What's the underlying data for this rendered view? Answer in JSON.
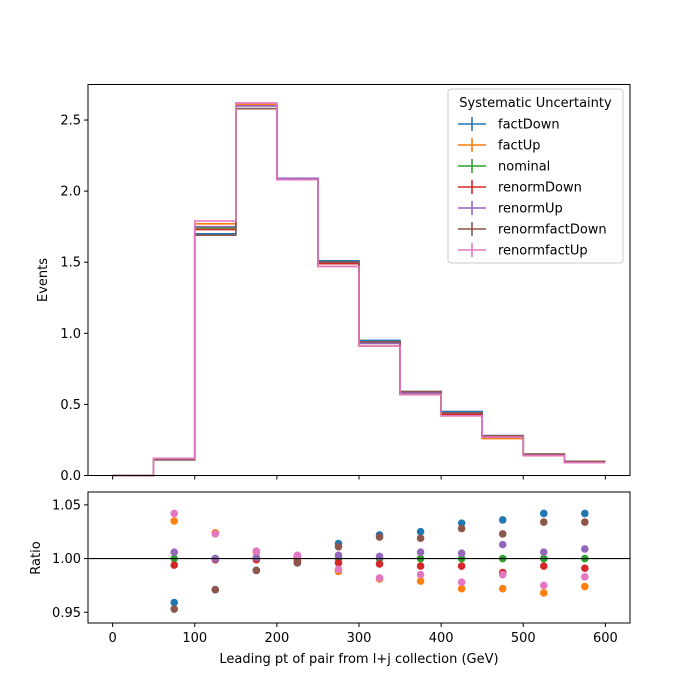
{
  "chart_data": [
    {
      "type": "line",
      "drawstyle": "steps",
      "panel": "main",
      "bin_edges": [
        0,
        50,
        100,
        150,
        200,
        250,
        300,
        350,
        400,
        450,
        500,
        550,
        600
      ],
      "xlim": [
        -30,
        630
      ],
      "ylim": [
        0,
        2.75
      ],
      "yticks": [
        0.0,
        0.5,
        1.0,
        1.5,
        2.0,
        2.5
      ],
      "ytick_labels": [
        "0.0",
        "0.5",
        "1.0",
        "1.5",
        "2.0",
        "2.5"
      ],
      "xticks": [
        0,
        100,
        200,
        300,
        400,
        500,
        600
      ],
      "ylabel": "Events",
      "legend": {
        "title": "Systematic Uncertainty",
        "placement": "top-right"
      },
      "series": [
        {
          "name": "factDown",
          "color": "#1f77b4",
          "values": [
            0.0,
            0.11,
            1.7,
            2.58,
            2.09,
            1.51,
            0.95,
            0.59,
            0.45,
            0.28,
            0.15,
            0.1
          ]
        },
        {
          "name": "factUp",
          "color": "#ff7f0e",
          "values": [
            0.0,
            0.12,
            1.77,
            2.61,
            2.08,
            1.47,
            0.91,
            0.57,
            0.42,
            0.26,
            0.14,
            0.09
          ]
        },
        {
          "name": "nominal",
          "color": "#2ca02c",
          "values": [
            0.0,
            0.12,
            1.74,
            2.6,
            2.09,
            1.49,
            0.93,
            0.58,
            0.43,
            0.27,
            0.15,
            0.09
          ]
        },
        {
          "name": "renormDown",
          "color": "#d62728",
          "values": [
            0.0,
            0.12,
            1.73,
            2.6,
            2.08,
            1.49,
            0.93,
            0.57,
            0.43,
            0.27,
            0.14,
            0.09
          ]
        },
        {
          "name": "renormUp",
          "color": "#9467bd",
          "values": [
            0.0,
            0.12,
            1.75,
            2.6,
            2.09,
            1.5,
            0.93,
            0.58,
            0.44,
            0.27,
            0.15,
            0.09
          ]
        },
        {
          "name": "renormfactDown",
          "color": "#8c564b",
          "values": [
            0.0,
            0.11,
            1.69,
            2.58,
            2.08,
            1.5,
            0.94,
            0.59,
            0.44,
            0.28,
            0.15,
            0.1
          ]
        },
        {
          "name": "renormfactUp",
          "color": "#e377c2",
          "values": [
            0.0,
            0.12,
            1.79,
            2.62,
            2.08,
            1.47,
            0.91,
            0.57,
            0.42,
            0.27,
            0.14,
            0.09
          ]
        }
      ]
    },
    {
      "type": "scatter",
      "panel": "ratio",
      "x": [
        75,
        125,
        175,
        225,
        275,
        325,
        375,
        425,
        475,
        525,
        575
      ],
      "xlim": [
        -30,
        630
      ],
      "ylim": [
        0.94,
        1.062
      ],
      "yticks": [
        0.95,
        1.0,
        1.05
      ],
      "ytick_labels": [
        "0.95",
        "1.00",
        "1.05"
      ],
      "xticks": [
        0,
        100,
        200,
        300,
        400,
        500,
        600
      ],
      "xtick_labels": [
        "0",
        "100",
        "200",
        "300",
        "400",
        "500",
        "600"
      ],
      "reference_line": 1.0,
      "xlabel": "Leading pt of pair from l+j collection (GeV)",
      "ylabel": "Ratio",
      "series": [
        {
          "name": "factDown",
          "color": "#1f77b4",
          "values": [
            0.959,
            0.971,
            0.989,
            0.996,
            1.014,
            1.022,
            1.025,
            1.033,
            1.036,
            1.042,
            1.042
          ]
        },
        {
          "name": "factUp",
          "color": "#ff7f0e",
          "values": [
            1.035,
            1.024,
            1.006,
            1.002,
            0.988,
            0.981,
            0.979,
            0.972,
            0.972,
            0.968,
            0.974
          ]
        },
        {
          "name": "nominal",
          "color": "#2ca02c",
          "values": [
            1.0,
            1.0,
            1.0,
            1.0,
            1.0,
            1.0,
            1.0,
            1.0,
            1.0,
            1.0,
            1.0
          ]
        },
        {
          "name": "renormDown",
          "color": "#d62728",
          "values": [
            0.994,
            0.999,
            0.999,
            0.998,
            0.996,
            0.995,
            0.993,
            0.993,
            0.987,
            0.993,
            0.991
          ]
        },
        {
          "name": "renormUp",
          "color": "#9467bd",
          "values": [
            1.006,
            1.0,
            1.001,
            1.002,
            1.003,
            1.002,
            1.006,
            1.005,
            1.013,
            1.006,
            1.009
          ]
        },
        {
          "name": "renormfactDown",
          "color": "#8c564b",
          "values": [
            0.953,
            0.971,
            0.989,
            0.996,
            1.011,
            1.02,
            1.019,
            1.028,
            1.023,
            1.034,
            1.034
          ]
        },
        {
          "name": "renormfactUp",
          "color": "#e377c2",
          "values": [
            1.042,
            1.023,
            1.007,
            1.003,
            0.99,
            0.982,
            0.985,
            0.978,
            0.985,
            0.975,
            0.983
          ]
        }
      ]
    }
  ]
}
